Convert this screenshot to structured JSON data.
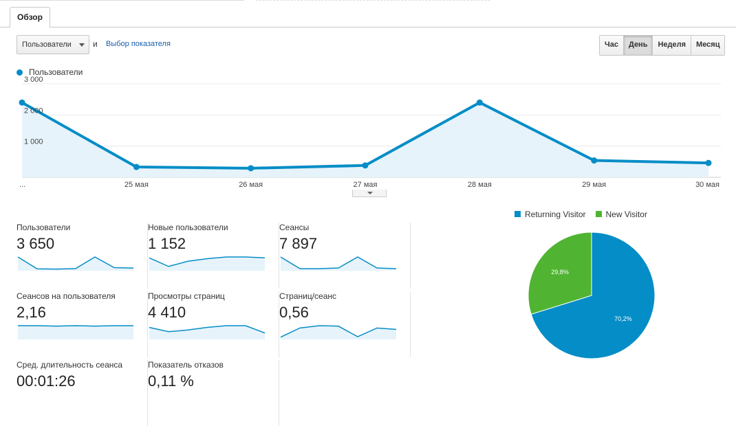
{
  "tabs": [
    {
      "label": "Обзор"
    }
  ],
  "controls": {
    "metric_select": "Пользователи",
    "and_label": "и",
    "metric_link": "Выбор показателя",
    "periods": [
      "Час",
      "День",
      "Неделя",
      "Месяц"
    ],
    "active_period": "День"
  },
  "chart_data": [
    {
      "type": "area",
      "legend": [
        "Пользователи"
      ],
      "series": [
        {
          "name": "Пользователи",
          "values": [
            2400,
            330,
            290,
            380,
            2400,
            540,
            460
          ]
        }
      ],
      "x": [
        "...",
        "25 мая",
        "26 мая",
        "27 мая",
        "28 мая",
        "29 мая",
        "30 мая"
      ],
      "y_ticks": [
        "1 000",
        "2 000",
        "3 000"
      ],
      "ylim": [
        0,
        3000
      ],
      "grid": true,
      "color": "#058dc7"
    },
    {
      "type": "pie",
      "legend_position": "top",
      "slices": [
        {
          "name": "Returning Visitor",
          "value": 70.2,
          "label": "70,2%",
          "color": "#058dc7"
        },
        {
          "name": "New Visitor",
          "value": 29.8,
          "label": "29,8%",
          "color": "#50b432"
        }
      ]
    }
  ],
  "metrics": [
    {
      "label": "Пользователи",
      "value": "3 650",
      "spark": [
        2400,
        330,
        290,
        380,
        2400,
        540,
        460
      ]
    },
    {
      "label": "Новые пользователи",
      "value": "1 152",
      "spark": [
        3,
        1,
        2.2,
        2.8,
        3.2,
        3.2,
        3
      ]
    },
    {
      "label": "Сеансы",
      "value": "7 897",
      "spark": [
        2,
        0.3,
        0.3,
        0.4,
        2,
        0.4,
        0.3
      ]
    },
    {
      "label": "Сеансов на пользователя",
      "value": "2,16",
      "spark": [
        3,
        3,
        2.9,
        3,
        2.9,
        3,
        3
      ]
    },
    {
      "label": "Просмотры страниц",
      "value": "4 410",
      "spark": [
        2.8,
        1.8,
        2.2,
        2.8,
        3.2,
        3.2,
        1.5
      ]
    },
    {
      "label": "Страниц/сеанс",
      "value": "0,56",
      "spark": [
        0.5,
        2.5,
        3,
        2.9,
        0.6,
        2.5,
        2.2
      ]
    },
    {
      "label": "Сред. длительность сеанса",
      "value": "00:01:26",
      "spark": []
    },
    {
      "label": "Показатель отказов",
      "value": "0,11 %",
      "spark": []
    }
  ]
}
